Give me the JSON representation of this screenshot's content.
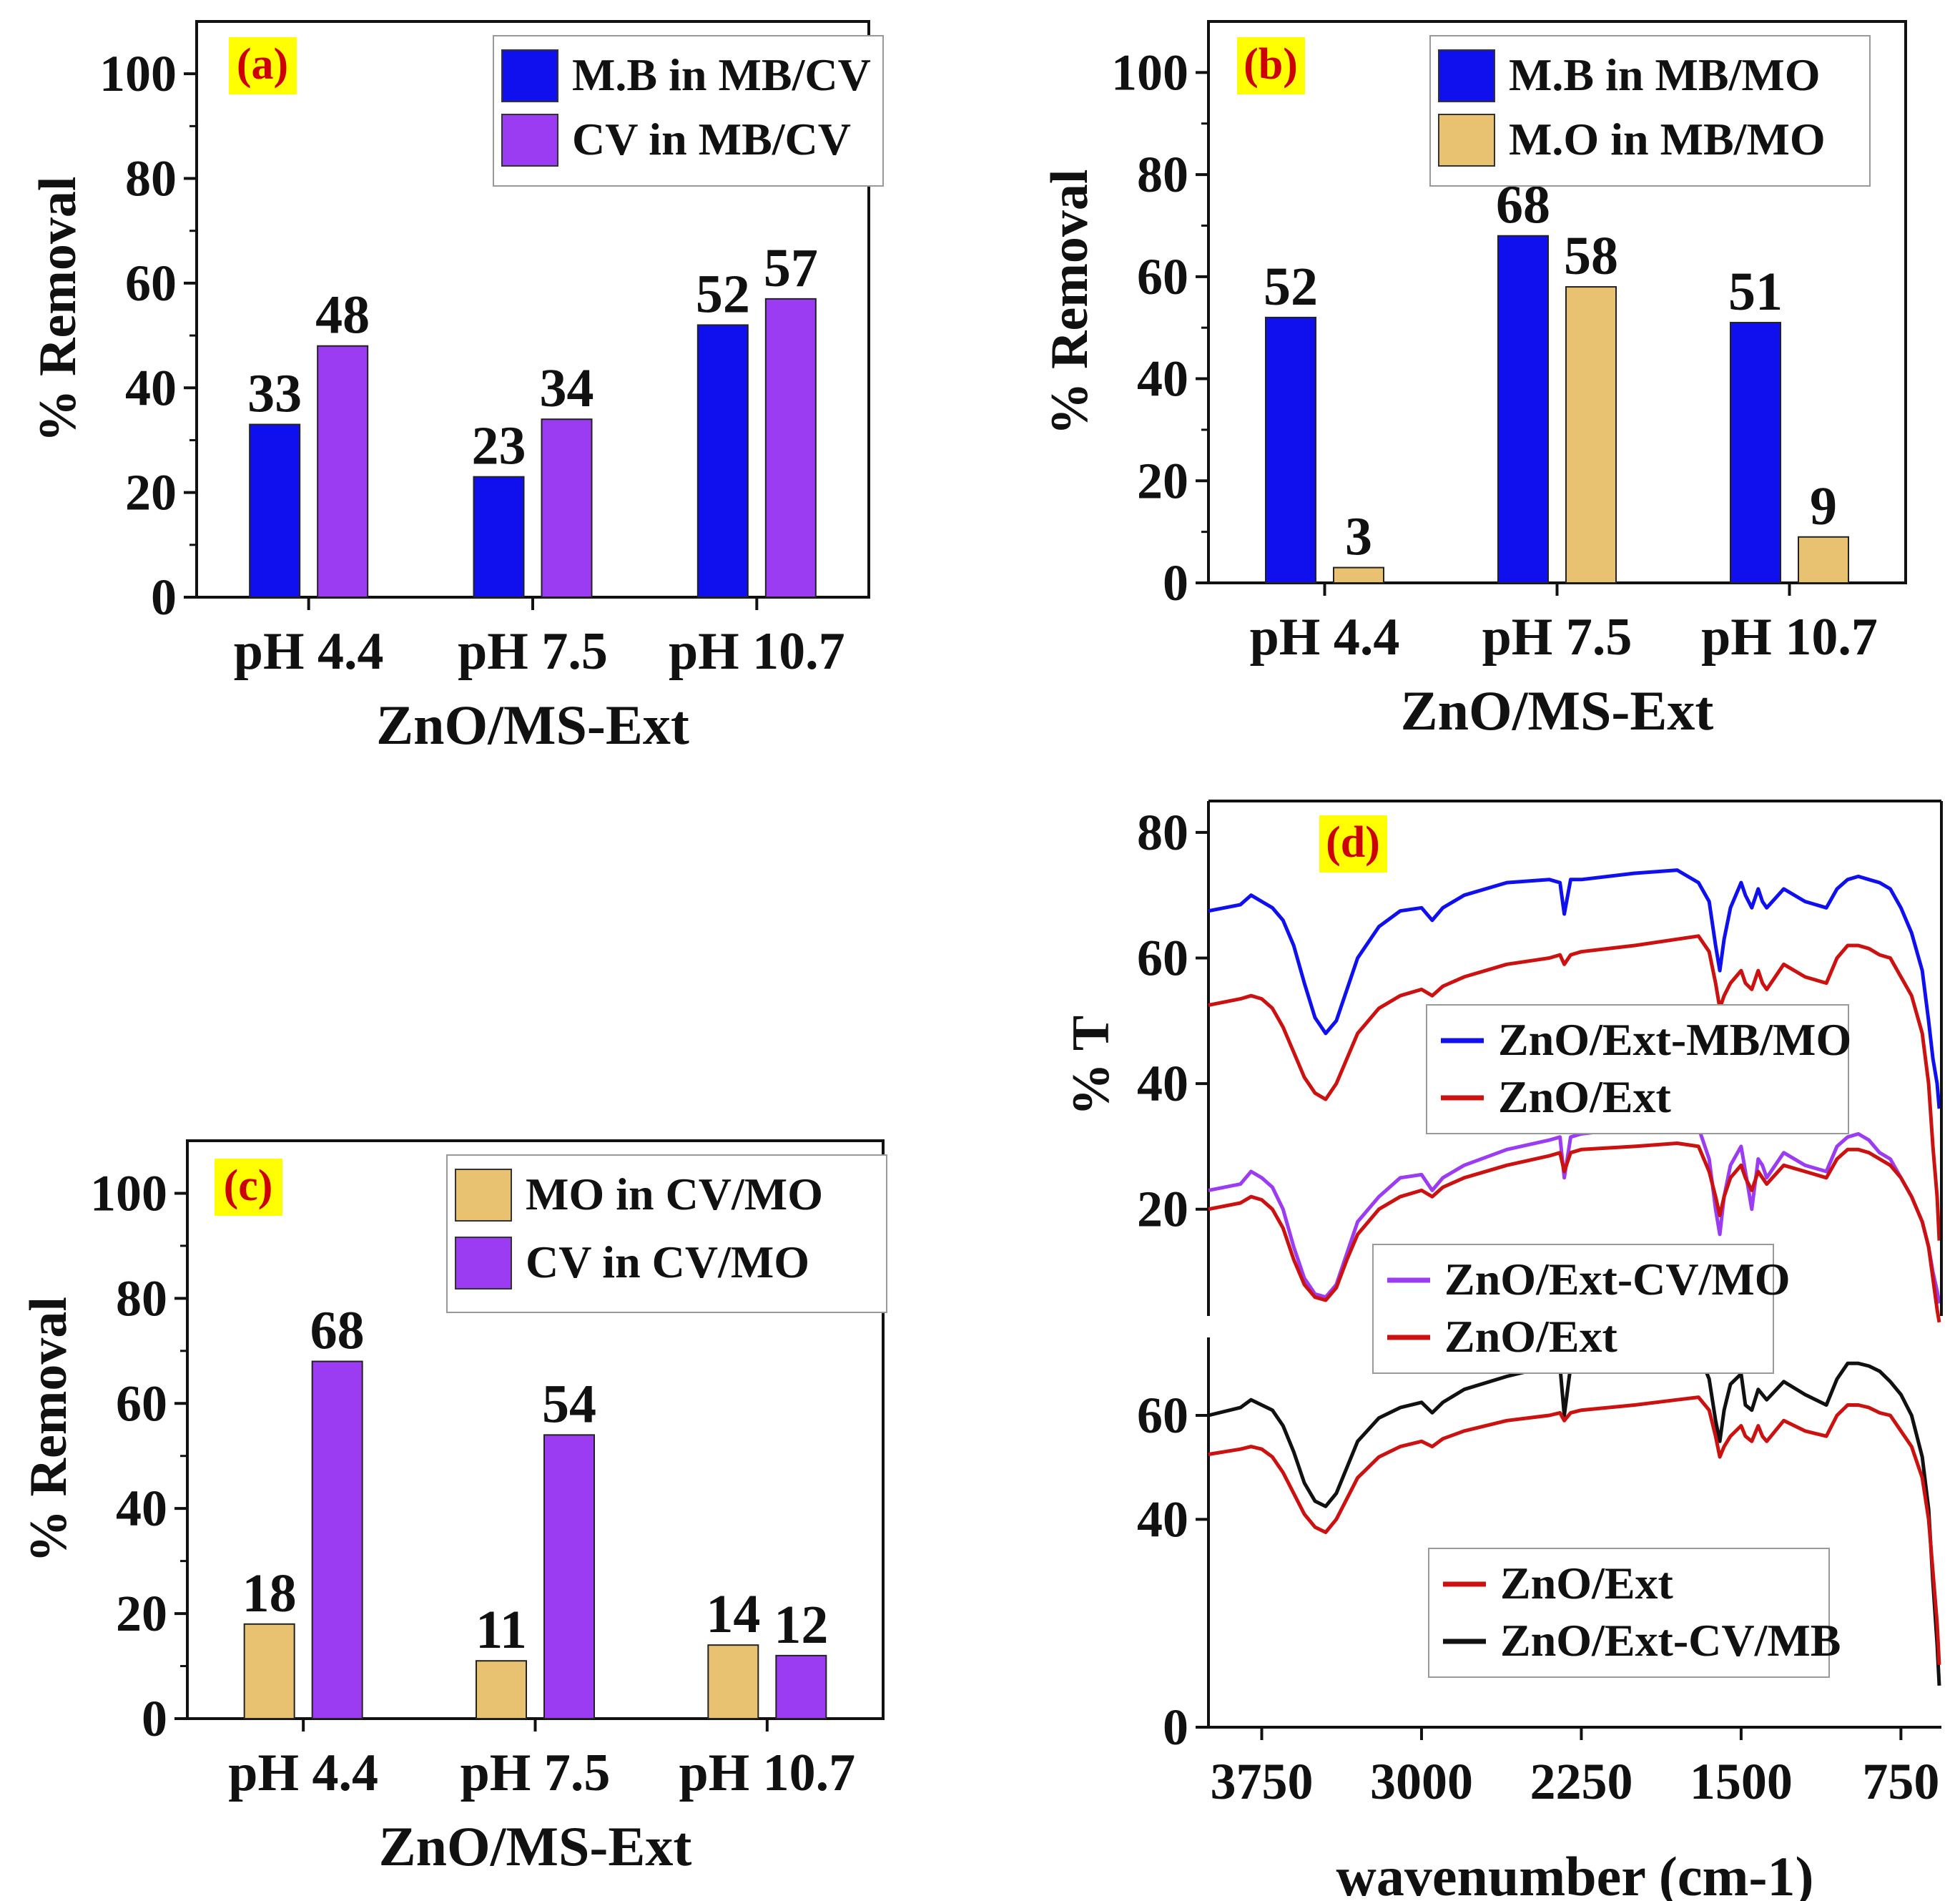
{
  "figure": "four-panel",
  "colors": {
    "blue": "#1010ee",
    "purple": "#9b3cf2",
    "tan": "#e8c271",
    "red": "#cc1111",
    "black": "#111111",
    "tag_bg": "#ffff00"
  },
  "chart_data": [
    {
      "id": "a",
      "type": "bar",
      "panel_label": "(a)",
      "categories": [
        "pH 4.4",
        "pH 7.5",
        "pH 10.7"
      ],
      "series": [
        {
          "name": "M.B in MB/CV",
          "color": "#1010ee",
          "values": [
            33,
            23,
            52
          ]
        },
        {
          "name": "CV in MB/CV",
          "color": "#9b3cf2",
          "values": [
            48,
            34,
            57
          ]
        }
      ],
      "xlabel": "ZnO/MS-Ext",
      "ylabel": "% Removal",
      "ylim": [
        0,
        110
      ],
      "yticks": [
        0,
        20,
        40,
        60,
        80,
        100
      ],
      "legend": "top-right"
    },
    {
      "id": "b",
      "type": "bar",
      "panel_label": "(b)",
      "categories": [
        "pH 4.4",
        "pH 7.5",
        "pH 10.7"
      ],
      "series": [
        {
          "name": "M.B in MB/MO",
          "color": "#1010ee",
          "values": [
            52,
            68,
            51
          ]
        },
        {
          "name": "M.O in MB/MO",
          "color": "#e8c271",
          "values": [
            3,
            58,
            9
          ]
        }
      ],
      "xlabel": "ZnO/MS-Ext",
      "ylabel": "% Removal",
      "ylim": [
        0,
        110
      ],
      "yticks": [
        0,
        20,
        40,
        60,
        80,
        100
      ],
      "legend": "top-right"
    },
    {
      "id": "c",
      "type": "bar",
      "panel_label": "(c)",
      "categories": [
        "pH 4.4",
        "pH 7.5",
        "pH 10.7"
      ],
      "series": [
        {
          "name": "MO in CV/MO",
          "color": "#e8c271",
          "values": [
            18,
            11,
            14
          ]
        },
        {
          "name": "CV in CV/MO",
          "color": "#9b3cf2",
          "values": [
            68,
            54,
            12
          ]
        }
      ],
      "xlabel": "ZnO/MS-Ext",
      "ylabel": "% Removal",
      "ylim": [
        0,
        110
      ],
      "yticks": [
        0,
        20,
        40,
        60,
        80,
        100
      ],
      "legend": "top-right"
    },
    {
      "id": "d",
      "type": "line",
      "panel_label": "(d)",
      "xlabel": "wavenumber (cm-1)",
      "ylabel": "% T",
      "xlim": [
        4000,
        560
      ],
      "xticks": [
        3750,
        3000,
        2250,
        1500,
        750
      ],
      "top_panel": {
        "ylim": [
          3,
          85
        ],
        "yticks": [
          20,
          40,
          60,
          80
        ],
        "legend1": [
          {
            "name": "ZnO/Ext-MB/MO",
            "color": "#1010ee"
          },
          {
            "name": "ZnO/Ext",
            "color": "#cc1111"
          }
        ],
        "legend2": [
          {
            "name": "ZnO/Ext-CV/MO",
            "color": "#9b3cf2"
          },
          {
            "name": "ZnO/Ext",
            "color": "#cc1111"
          }
        ],
        "series": [
          {
            "name": "ZnO/Ext-MB/MO",
            "color": "#1010ee",
            "x": [
              4000,
              3850,
              3800,
              3750,
              3700,
              3650,
              3600,
              3550,
              3500,
              3450,
              3400,
              3350,
              3300,
              3200,
              3100,
              3000,
              2950,
              2900,
              2800,
              2600,
              2400,
              2350,
              2330,
              2300,
              2250,
              2000,
              1800,
              1700,
              1650,
              1620,
              1600,
              1580,
              1550,
              1500,
              1480,
              1450,
              1420,
              1400,
              1380,
              1300,
              1200,
              1100,
              1050,
              1000,
              950,
              900,
              850,
              800,
              750,
              700,
              650,
              620,
              600,
              580,
              570
            ],
            "y": [
              67.5,
              68.5,
              70,
              69,
              68,
              66,
              62,
              56,
              50.5,
              48,
              50,
              55,
              60,
              65,
              67.5,
              68,
              66,
              68,
              70,
              72,
              72.5,
              72,
              67,
              72.5,
              72.5,
              73.5,
              74,
              72,
              69,
              62,
              58,
              63,
              68,
              72,
              70,
              68,
              71,
              69,
              68,
              71,
              69,
              68,
              71,
              72.5,
              73,
              72.5,
              72,
              71,
              68,
              64,
              58,
              50,
              44,
              40,
              36
            ]
          },
          {
            "name": "ZnO/Ext (a)",
            "color": "#cc1111",
            "x": [
              4000,
              3850,
              3800,
              3750,
              3700,
              3650,
              3600,
              3550,
              3500,
              3450,
              3400,
              3350,
              3300,
              3200,
              3100,
              3000,
              2950,
              2900,
              2800,
              2600,
              2400,
              2350,
              2330,
              2300,
              2250,
              2000,
              1800,
              1700,
              1650,
              1620,
              1600,
              1580,
              1550,
              1500,
              1480,
              1450,
              1420,
              1400,
              1380,
              1300,
              1200,
              1100,
              1050,
              1000,
              950,
              900,
              850,
              800,
              750,
              700,
              650,
              620,
              600,
              580,
              570
            ],
            "y": [
              52.5,
              53.5,
              54,
              53.5,
              52,
              49,
              45,
              41,
              38.5,
              37.5,
              40,
              44,
              48,
              52,
              54,
              55,
              54,
              55.5,
              57,
              59,
              60,
              60.5,
              59,
              60.5,
              61,
              62,
              63,
              63.5,
              61,
              56,
              52,
              54,
              56,
              58,
              56,
              55,
              58,
              56,
              55,
              59,
              57,
              56,
              60,
              62,
              62,
              61.5,
              60.5,
              60,
              57,
              54,
              48,
              40,
              30,
              22,
              15
            ]
          },
          {
            "name": "ZnO/Ext-CV/MO",
            "color": "#9b3cf2",
            "x": [
              4000,
              3850,
              3800,
              3750,
              3700,
              3650,
              3600,
              3550,
              3500,
              3450,
              3400,
              3350,
              3300,
              3200,
              3100,
              3000,
              2950,
              2900,
              2800,
              2600,
              2400,
              2350,
              2330,
              2300,
              2250,
              2000,
              1800,
              1700,
              1650,
              1620,
              1600,
              1580,
              1550,
              1500,
              1480,
              1450,
              1420,
              1400,
              1380,
              1300,
              1200,
              1100,
              1050,
              1000,
              950,
              900,
              850,
              800,
              750,
              700,
              650,
              620,
              600,
              580,
              570
            ],
            "y": [
              23,
              24,
              26,
              25,
              23.5,
              20,
              14,
              9,
              6.5,
              6,
              8,
              13,
              18,
              22,
              25,
              25.5,
              23,
              25,
              27,
              29.5,
              31,
              31.5,
              25,
              31.5,
              32,
              33,
              34.5,
              33,
              28,
              20,
              16,
              22,
              27,
              30,
              26,
              20,
              28,
              27,
              25,
              29,
              27,
              26,
              30,
              31.5,
              32,
              31,
              29,
              28,
              25,
              22,
              18,
              14,
              10,
              7,
              5
            ]
          },
          {
            "name": "ZnO/Ext (b)",
            "color": "#cc1111",
            "x": [
              4000,
              3850,
              3800,
              3750,
              3700,
              3650,
              3600,
              3550,
              3500,
              3450,
              3400,
              3350,
              3300,
              3200,
              3100,
              3000,
              2950,
              2900,
              2800,
              2600,
              2400,
              2350,
              2330,
              2300,
              2250,
              2000,
              1800,
              1700,
              1650,
              1620,
              1600,
              1580,
              1550,
              1500,
              1480,
              1450,
              1420,
              1400,
              1380,
              1300,
              1200,
              1100,
              1050,
              1000,
              950,
              900,
              850,
              800,
              750,
              700,
              650,
              620,
              600,
              580,
              570
            ],
            "y": [
              20,
              21,
              22,
              21.5,
              20,
              17,
              12,
              8,
              6,
              5.5,
              7.5,
              12,
              16,
              20,
              22,
              23,
              22,
              23.5,
              25,
              27,
              28.5,
              29,
              26,
              29,
              29.5,
              30,
              30.5,
              30,
              26,
              22,
              19,
              22,
              25,
              27,
              25,
              23,
              26,
              25,
              24,
              27,
              26,
              25,
              28,
              29.5,
              29.5,
              29,
              28,
              27,
              25,
              22,
              18,
              14,
              9,
              4,
              2
            ]
          }
        ]
      },
      "bottom_panel": {
        "ylim": [
          0,
          75
        ],
        "yticks": [
          0,
          40,
          60
        ],
        "legend": [
          {
            "name": "ZnO/Ext",
            "color": "#cc1111"
          },
          {
            "name": "ZnO/Ext-CV/MB",
            "color": "#111111"
          }
        ],
        "series": [
          {
            "name": "ZnO/Ext-CV/MB",
            "color": "#111111",
            "x": [
              4000,
              3850,
              3800,
              3750,
              3700,
              3650,
              3600,
              3550,
              3500,
              3450,
              3400,
              3350,
              3300,
              3200,
              3100,
              3000,
              2950,
              2900,
              2800,
              2600,
              2400,
              2350,
              2330,
              2300,
              2250,
              2000,
              1800,
              1700,
              1650,
              1620,
              1600,
              1580,
              1550,
              1500,
              1480,
              1450,
              1420,
              1400,
              1380,
              1300,
              1200,
              1100,
              1050,
              1000,
              950,
              900,
              850,
              800,
              750,
              700,
              650,
              620,
              600,
              580,
              570
            ],
            "y": [
              60,
              61.5,
              63,
              62,
              61,
              58,
              53,
              47,
              43.5,
              42.5,
              45,
              50,
              55,
              59.5,
              61.5,
              62.5,
              60.5,
              62.5,
              65,
              67.5,
              69.5,
              69.5,
              60,
              69.5,
              70.5,
              72,
              73.5,
              72,
              67,
              59,
              55,
              61,
              66,
              68,
              62,
              61,
              65,
              64,
              63,
              66.5,
              64,
              62,
              67,
              70,
              70,
              69.5,
              68.5,
              66.5,
              64,
              60,
              52,
              42,
              28,
              16,
              8
            ]
          },
          {
            "name": "ZnO/Ext",
            "color": "#cc1111",
            "x": [
              4000,
              3850,
              3800,
              3750,
              3700,
              3650,
              3600,
              3550,
              3500,
              3450,
              3400,
              3350,
              3300,
              3200,
              3100,
              3000,
              2950,
              2900,
              2800,
              2600,
              2400,
              2350,
              2330,
              2300,
              2250,
              2000,
              1800,
              1700,
              1650,
              1620,
              1600,
              1580,
              1550,
              1500,
              1480,
              1450,
              1420,
              1400,
              1380,
              1300,
              1200,
              1100,
              1050,
              1000,
              950,
              900,
              850,
              800,
              750,
              700,
              650,
              620,
              600,
              580,
              570
            ],
            "y": [
              52.5,
              53.5,
              54,
              53.5,
              52,
              49,
              45,
              41,
              38.5,
              37.5,
              40,
              44,
              48,
              52,
              54,
              55,
              54,
              55.5,
              57,
              59,
              60,
              60.5,
              59,
              60.5,
              61,
              62,
              63,
              63.5,
              61,
              56,
              52,
              54,
              56,
              58,
              56,
              55,
              58,
              56,
              55,
              59,
              57,
              56,
              60,
              62,
              62,
              61.5,
              60.5,
              60,
              57,
              54,
              48,
              40,
              30,
              20,
              12
            ]
          }
        ]
      }
    }
  ]
}
